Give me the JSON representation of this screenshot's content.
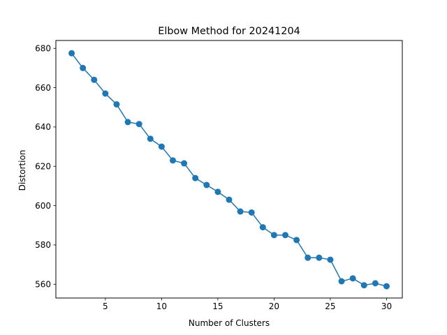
{
  "chart_data": {
    "type": "line",
    "title": "Elbow Method for 20241204",
    "xlabel": "Number of Clusters",
    "ylabel": "Distortion",
    "xlim": [
      0.6,
      31.4
    ],
    "ylim": [
      553.0,
      684.0
    ],
    "xticks": [
      5,
      10,
      15,
      20,
      25,
      30
    ],
    "yticks": [
      560,
      580,
      600,
      620,
      640,
      660,
      680
    ],
    "grid": false,
    "legend": "none",
    "markers": "circle",
    "series": [
      {
        "color": "#1f77b4",
        "x": [
          2,
          3,
          4,
          5,
          6,
          7,
          8,
          9,
          10,
          11,
          12,
          13,
          14,
          15,
          16,
          17,
          18,
          19,
          20,
          21,
          22,
          23,
          24,
          25,
          26,
          27,
          28,
          29,
          30
        ],
        "y": [
          677.5,
          670.0,
          664.0,
          657.0,
          651.5,
          642.5,
          641.5,
          634.0,
          630.0,
          623.0,
          621.5,
          614.0,
          610.5,
          607.0,
          603.0,
          597.0,
          596.5,
          589.0,
          585.0,
          585.0,
          582.5,
          573.5,
          573.5,
          572.5,
          561.5,
          563.0,
          559.5,
          560.5,
          559.0
        ]
      }
    ]
  }
}
